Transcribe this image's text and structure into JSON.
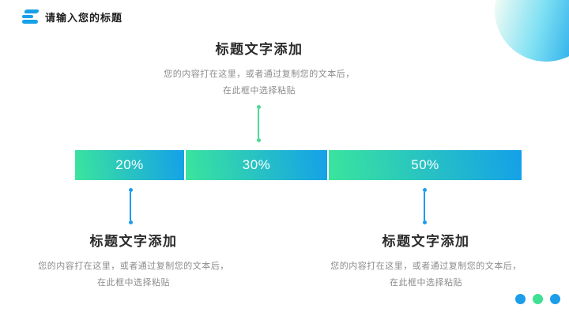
{
  "slide": {
    "background": "#ffffff"
  },
  "header": {
    "title": "请输入您的标题",
    "logo_icon": "menu-bars-icon",
    "accent_color": "#18a0e8"
  },
  "sections": {
    "top": {
      "title": "标题文字添加",
      "body_line1": "您的内容打在这里，或者通过复制您的文本后，",
      "body_line2": "在此框中选择粘贴"
    },
    "bottom_left": {
      "title": "标题文字添加",
      "body_line1": "您的内容打在这里，或者通过复制您的文本后，",
      "body_line2": "在此框中选择粘贴"
    },
    "bottom_right": {
      "title": "标题文字添加",
      "body_line1": "您的内容打在这里，或者通过复制您的文本后，",
      "body_line2": "在此框中选择粘贴"
    }
  },
  "bar": {
    "segments": [
      {
        "label": "20%",
        "value": 20
      },
      {
        "label": "30%",
        "value": 30
      },
      {
        "label": "50%",
        "value": 50
      }
    ],
    "gradient_green": "#3be59c",
    "gradient_blue": "#14a0e9"
  },
  "connectors": {
    "top_color": "#4cd996",
    "bottom_color": "#1b9de9"
  },
  "decor": {
    "corner_circle_colors": [
      "#f3fcf5",
      "#7ee0f3",
      "#149fe8"
    ],
    "footer_dots": [
      "#1b9de9",
      "#3fe093",
      "#1b9de9"
    ]
  }
}
